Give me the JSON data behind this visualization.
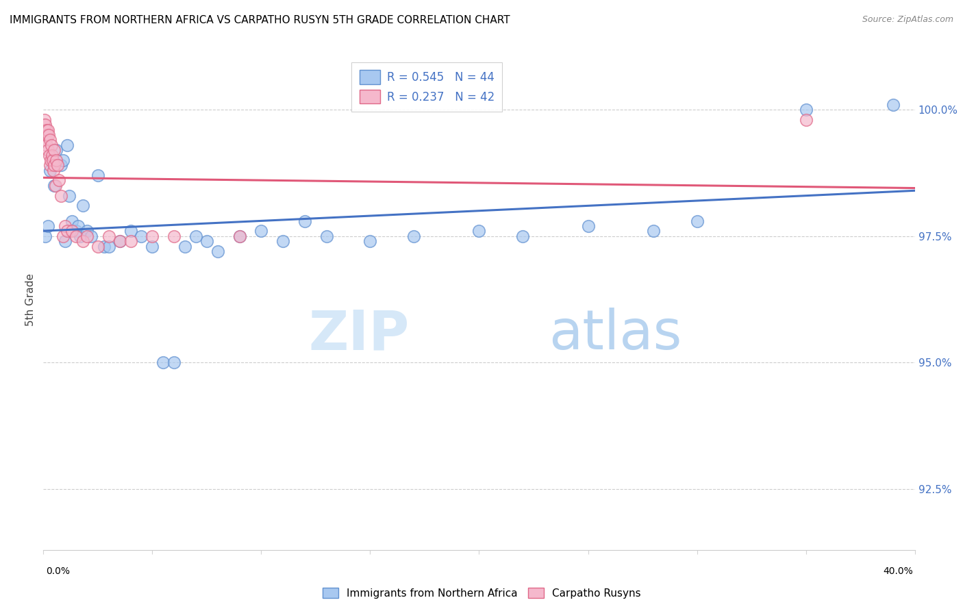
{
  "title": "IMMIGRANTS FROM NORTHERN AFRICA VS CARPATHO RUSYN 5TH GRADE CORRELATION CHART",
  "source": "Source: ZipAtlas.com",
  "ylabel": "5th Grade",
  "yticks": [
    92.5,
    95.0,
    97.5,
    100.0
  ],
  "ytick_labels": [
    "92.5%",
    "95.0%",
    "97.5%",
    "100.0%"
  ],
  "xlim": [
    0.0,
    40.0
  ],
  "ylim": [
    91.3,
    101.2
  ],
  "blue_R": 0.545,
  "blue_N": 44,
  "pink_R": 0.237,
  "pink_N": 42,
  "blue_color": "#a8c8f0",
  "pink_color": "#f5b8cc",
  "blue_edge_color": "#6090d0",
  "pink_edge_color": "#e06888",
  "blue_line_color": "#4472c4",
  "pink_line_color": "#e05878",
  "legend_blue_label": "Immigrants from Northern Africa",
  "legend_pink_label": "Carpatho Rusyns",
  "watermark_zip": "ZIP",
  "watermark_atlas": "atlas",
  "blue_x": [
    0.1,
    0.2,
    0.3,
    0.5,
    0.6,
    0.8,
    0.9,
    1.0,
    1.1,
    1.2,
    1.3,
    1.5,
    1.6,
    1.7,
    1.8,
    2.0,
    2.2,
    2.5,
    2.8,
    3.0,
    3.5,
    4.0,
    4.5,
    5.0,
    5.5,
    6.0,
    6.5,
    7.0,
    7.5,
    8.0,
    9.0,
    10.0,
    11.0,
    12.0,
    13.0,
    15.0,
    17.0,
    20.0,
    22.0,
    25.0,
    28.0,
    30.0,
    35.0,
    39.0
  ],
  "blue_y": [
    97.5,
    97.7,
    98.8,
    98.5,
    99.2,
    98.9,
    99.0,
    97.4,
    99.3,
    98.3,
    97.8,
    97.6,
    97.7,
    97.5,
    98.1,
    97.6,
    97.5,
    98.7,
    97.3,
    97.3,
    97.4,
    97.6,
    97.5,
    97.3,
    95.0,
    95.0,
    97.3,
    97.5,
    97.4,
    97.2,
    97.5,
    97.6,
    97.4,
    97.8,
    97.5,
    97.4,
    97.5,
    97.6,
    97.5,
    97.7,
    97.6,
    97.8,
    100.0,
    100.1
  ],
  "pink_x": [
    0.02,
    0.04,
    0.06,
    0.08,
    0.1,
    0.12,
    0.14,
    0.16,
    0.18,
    0.2,
    0.22,
    0.25,
    0.28,
    0.3,
    0.32,
    0.35,
    0.38,
    0.4,
    0.42,
    0.45,
    0.48,
    0.5,
    0.55,
    0.6,
    0.65,
    0.7,
    0.8,
    0.9,
    1.0,
    1.1,
    1.3,
    1.5,
    1.8,
    2.0,
    2.5,
    3.0,
    3.5,
    4.0,
    5.0,
    6.0,
    9.0,
    35.0
  ],
  "pink_y": [
    99.7,
    99.6,
    99.8,
    99.5,
    99.7,
    99.4,
    99.6,
    99.3,
    99.5,
    99.6,
    99.2,
    99.5,
    99.1,
    98.9,
    99.4,
    99.0,
    99.3,
    99.1,
    99.0,
    98.8,
    99.2,
    98.9,
    98.5,
    99.0,
    98.9,
    98.6,
    98.3,
    97.5,
    97.7,
    97.6,
    97.6,
    97.5,
    97.4,
    97.5,
    97.3,
    97.5,
    97.4,
    97.4,
    97.5,
    97.5,
    97.5,
    99.8
  ]
}
